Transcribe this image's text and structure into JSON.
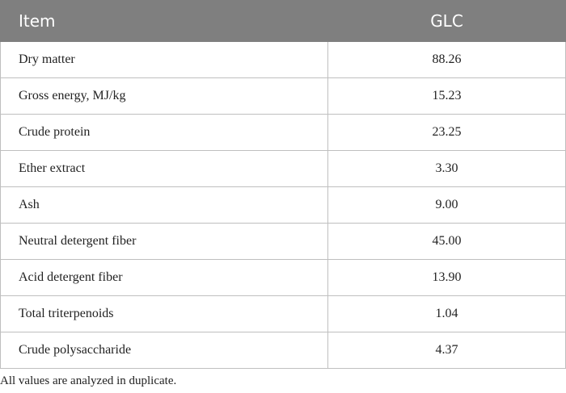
{
  "table": {
    "header": [
      "Item",
      "GLC"
    ],
    "rows": [
      [
        "Dry matter",
        "88.26"
      ],
      [
        "Gross energy, MJ/kg",
        "15.23"
      ],
      [
        "Crude protein",
        "23.25"
      ],
      [
        "Ether extract",
        "3.30"
      ],
      [
        "Ash",
        "9.00"
      ],
      [
        "Neutral detergent fiber",
        "45.00"
      ],
      [
        "Acid detergent fiber",
        "13.90"
      ],
      [
        "Total triterpenoids",
        "1.04"
      ],
      [
        "Crude polysaccharide",
        "4.37"
      ]
    ],
    "footnote": "All values are analyzed in duplicate."
  }
}
